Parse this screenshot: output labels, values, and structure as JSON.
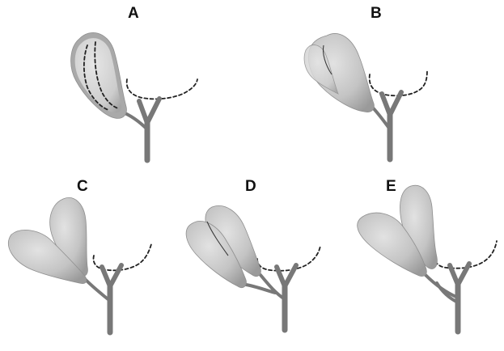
{
  "panels": [
    {
      "id": "A",
      "label": "A"
    },
    {
      "id": "B",
      "label": "B"
    },
    {
      "id": "C",
      "label": "C"
    },
    {
      "id": "D",
      "label": "D"
    },
    {
      "id": "E",
      "label": "E"
    }
  ],
  "colors": {
    "background": "#ffffff",
    "organ_light": "#dcdcdc",
    "organ_dark": "#9c9c9c",
    "duct": "#787878",
    "dashed_outline": "#222222",
    "label": "#111111"
  }
}
